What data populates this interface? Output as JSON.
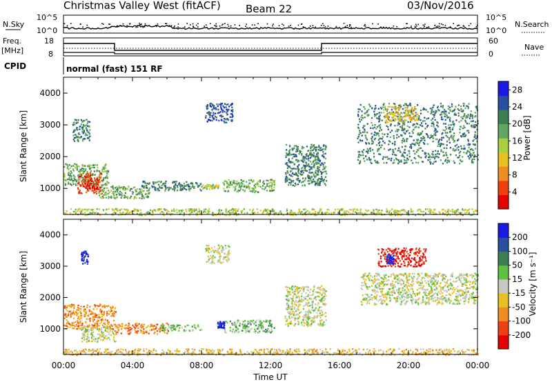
{
  "header": {
    "station": "Christmas Valley West (fitACF)",
    "beam": "Beam 22",
    "date": "03/Nov/2016"
  },
  "top_panels": {
    "nsky_label": "N.Sky",
    "nsearch_label": "N.Search",
    "nsky_ticks": [
      "10^5",
      "10^0"
    ],
    "nsearch_ticks": [
      "10^5",
      "10^0"
    ],
    "freq_label": "Freq.",
    "freq_unit": "[MHz]",
    "freq_ticks": [
      "18",
      "8"
    ],
    "nave_label": "Nave",
    "nave_ticks": [
      "60",
      "0"
    ],
    "cpid_label": "CPID",
    "cpid_text": "normal (fast) 151 RF"
  },
  "colors": {
    "power_scale": [
      "#1a1ae6",
      "#2a4ea0",
      "#3f7f4f",
      "#60a860",
      "#a8d040",
      "#e8c020",
      "#f08c20",
      "#f04010",
      "#e80000"
    ],
    "velocity_scale": [
      "#1a1ae6",
      "#2a4ea0",
      "#3f7f4f",
      "#60c040",
      "#c8c8c0",
      "#e8c020",
      "#f08c20",
      "#f04010",
      "#e80000"
    ]
  },
  "chart_data": [
    {
      "type": "heatmap",
      "name": "power",
      "xlabel": "Time UT",
      "ylabel": "Slant Range [km]",
      "xticks": [
        "00:00",
        "04:00",
        "08:00",
        "12:00",
        "16:00",
        "20:00",
        "00:00"
      ],
      "yticks": [
        "1000",
        "2000",
        "3000",
        "4000"
      ],
      "xlim_hours": [
        0,
        24
      ],
      "ylim_km": [
        180,
        4500
      ],
      "colorbar_label": "Power [dB]",
      "colorbar_ticks": [
        "4",
        "8",
        "12",
        "16",
        "20",
        "24",
        "28"
      ],
      "colorbar_range": [
        0,
        30
      ],
      "regions": [
        {
          "t": [
            0.0,
            2.6
          ],
          "r": [
            1100,
            1800
          ],
          "level": 3
        },
        {
          "t": [
            0.8,
            2.2
          ],
          "r": [
            850,
            1500
          ],
          "level": 7
        },
        {
          "t": [
            1.2,
            2.0
          ],
          "r": [
            1000,
            1300
          ],
          "level": 8
        },
        {
          "t": [
            2.0,
            5.0
          ],
          "r": [
            700,
            1100
          ],
          "level": 3
        },
        {
          "t": [
            4.5,
            8.0
          ],
          "r": [
            950,
            1250
          ],
          "level": 2
        },
        {
          "t": [
            9.2,
            12.2
          ],
          "r": [
            900,
            1300
          ],
          "level": 3
        },
        {
          "t": [
            8.0,
            9.0
          ],
          "r": [
            1000,
            1150
          ],
          "level": 4
        },
        {
          "t": [
            12.8,
            15.2
          ],
          "r": [
            1100,
            2400
          ],
          "level": 2
        },
        {
          "t": [
            17.0,
            24.0
          ],
          "r": [
            1800,
            3700
          ],
          "level": 2
        },
        {
          "t": [
            18.5,
            20.5
          ],
          "r": [
            3100,
            3600
          ],
          "level": 5
        },
        {
          "t": [
            8.2,
            9.8
          ],
          "r": [
            3100,
            3700
          ],
          "level": 1
        },
        {
          "t": [
            0.5,
            1.5
          ],
          "r": [
            2500,
            3200
          ],
          "level": 2
        },
        {
          "t": [
            0.0,
            24.0
          ],
          "r": [
            180,
            380
          ],
          "level": 4
        }
      ]
    },
    {
      "type": "heatmap",
      "name": "velocity",
      "xlabel": "Time UT",
      "ylabel": "Slant Range [km]",
      "xticks": [
        "00:00",
        "04:00",
        "08:00",
        "12:00",
        "16:00",
        "20:00",
        "00:00"
      ],
      "yticks": [
        "1000",
        "2000",
        "3000",
        "4000"
      ],
      "xlim_hours": [
        0,
        24
      ],
      "ylim_km": [
        180,
        4500
      ],
      "colorbar_label": "Velocity [m s⁻¹]",
      "colorbar_ticks": [
        "200",
        "100",
        "50",
        "15",
        "-15",
        "-50",
        "-100",
        "-200"
      ],
      "colorbar_range": [
        -250,
        250
      ],
      "regions": [
        {
          "t": [
            0.0,
            3.0
          ],
          "r": [
            1000,
            1800
          ],
          "level": 6
        },
        {
          "t": [
            1.0,
            3.0
          ],
          "r": [
            600,
            1100
          ],
          "level": 4
        },
        {
          "t": [
            3.0,
            6.0
          ],
          "r": [
            850,
            1200
          ],
          "level": 6
        },
        {
          "t": [
            5.5,
            8.0
          ],
          "r": [
            950,
            1150
          ],
          "level": 3
        },
        {
          "t": [
            9.2,
            12.2
          ],
          "r": [
            900,
            1300
          ],
          "level": 3
        },
        {
          "t": [
            8.9,
            9.3
          ],
          "r": [
            1050,
            1250
          ],
          "level": 0
        },
        {
          "t": [
            12.8,
            15.2
          ],
          "r": [
            1100,
            2400
          ],
          "level": 4
        },
        {
          "t": [
            17.2,
            24.0
          ],
          "r": [
            1800,
            2800
          ],
          "level": 4
        },
        {
          "t": [
            18.2,
            21.0
          ],
          "r": [
            3000,
            3600
          ],
          "level": 8
        },
        {
          "t": [
            18.7,
            19.1
          ],
          "r": [
            3100,
            3400
          ],
          "level": 0
        },
        {
          "t": [
            8.2,
            9.6
          ],
          "r": [
            3100,
            3700
          ],
          "level": 4
        },
        {
          "t": [
            1.0,
            1.4
          ],
          "r": [
            3100,
            3500
          ],
          "level": 0
        },
        {
          "t": [
            0.0,
            24.0
          ],
          "r": [
            180,
            380
          ],
          "level": 5
        }
      ]
    }
  ]
}
